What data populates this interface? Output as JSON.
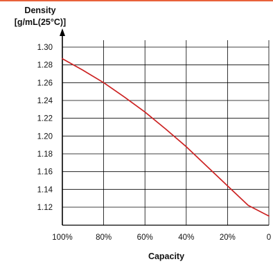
{
  "colors": {
    "header_rule": "#e8613a",
    "series_line": "#cc2222",
    "grid": "#000000",
    "axis": "#000000",
    "text": "#111111"
  },
  "chart_data": {
    "type": "line",
    "ylabel_line1": "Density",
    "ylabel_line2": "[g/mL(25°C)]",
    "xlabel": "Capacity",
    "x_reversed": true,
    "xlim": [
      0,
      100
    ],
    "ylim": [
      1.1,
      1.3
    ],
    "grid": true,
    "x_ticks": [
      {
        "value": 100,
        "label": "100%"
      },
      {
        "value": 80,
        "label": "80%"
      },
      {
        "value": 60,
        "label": "60%"
      },
      {
        "value": 40,
        "label": "40%"
      },
      {
        "value": 20,
        "label": "20%"
      },
      {
        "value": 0,
        "label": "0"
      }
    ],
    "y_ticks": [
      {
        "value": 1.3,
        "label": "1.30"
      },
      {
        "value": 1.28,
        "label": "1.28"
      },
      {
        "value": 1.26,
        "label": "1.26"
      },
      {
        "value": 1.24,
        "label": "1.24"
      },
      {
        "value": 1.22,
        "label": "1.22"
      },
      {
        "value": 1.2,
        "label": "1.20"
      },
      {
        "value": 1.18,
        "label": "1.18"
      },
      {
        "value": 1.16,
        "label": "1.16"
      },
      {
        "value": 1.14,
        "label": "1.14"
      },
      {
        "value": 1.12,
        "label": "1.12"
      }
    ],
    "series": [
      {
        "x": [
          100,
          90,
          80,
          70,
          60,
          50,
          40,
          30,
          20,
          10,
          0
        ],
        "y": [
          1.287,
          1.274,
          1.26,
          1.244,
          1.227,
          1.208,
          1.188,
          1.166,
          1.144,
          1.122,
          1.11
        ]
      }
    ]
  }
}
